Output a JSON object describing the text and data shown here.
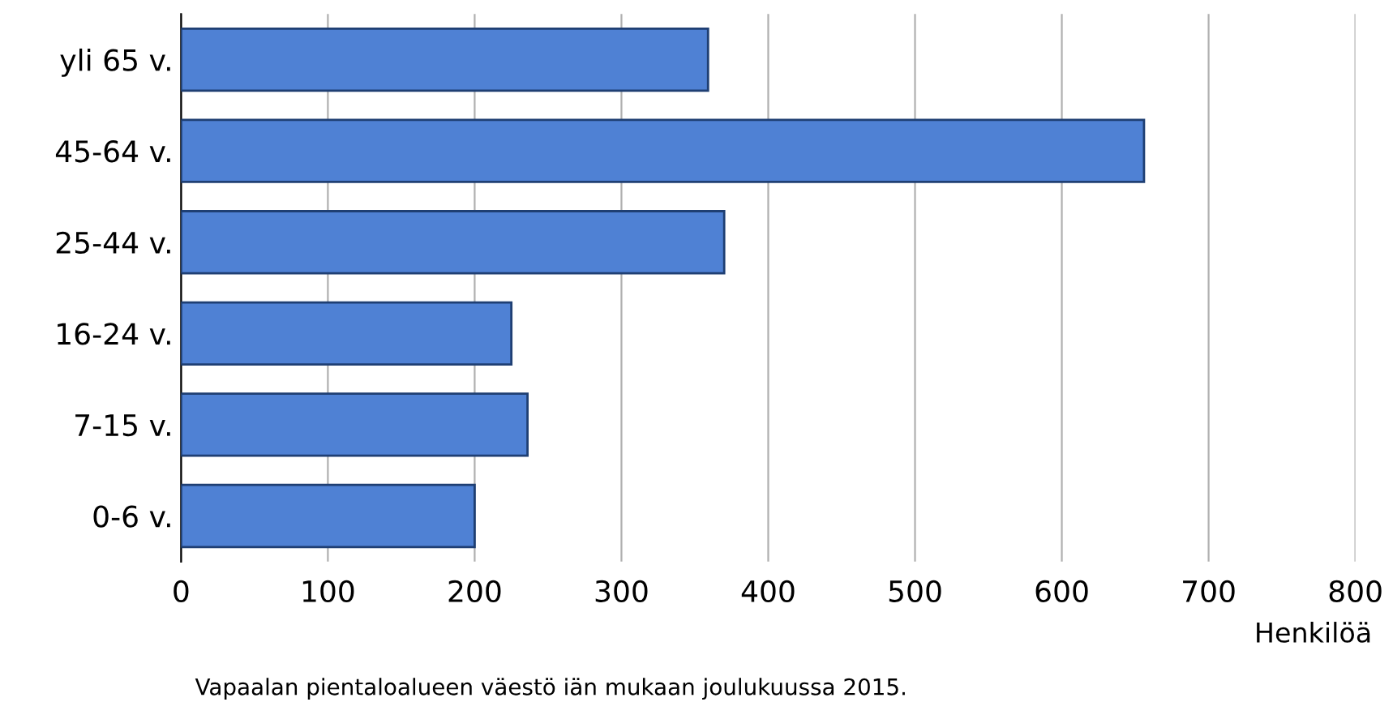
{
  "chart_data": {
    "type": "bar",
    "orientation": "horizontal",
    "categories": [
      "yli 65 v.",
      "45-64 v.",
      "25-44 v.",
      "16-24 v.",
      "7-15 v.",
      "0-6 v."
    ],
    "values": [
      359,
      656,
      370,
      225,
      236,
      200
    ],
    "color": "#4f81d4",
    "xlim": [
      0,
      800
    ],
    "xticks": [
      0,
      100,
      200,
      300,
      400,
      500,
      600,
      700,
      800
    ],
    "grid": "x",
    "xlabel": "Henkilöä",
    "annotations": [
      "Vapaalan pientaloalueen väestö iän mukaan joulukuussa 2015."
    ]
  }
}
